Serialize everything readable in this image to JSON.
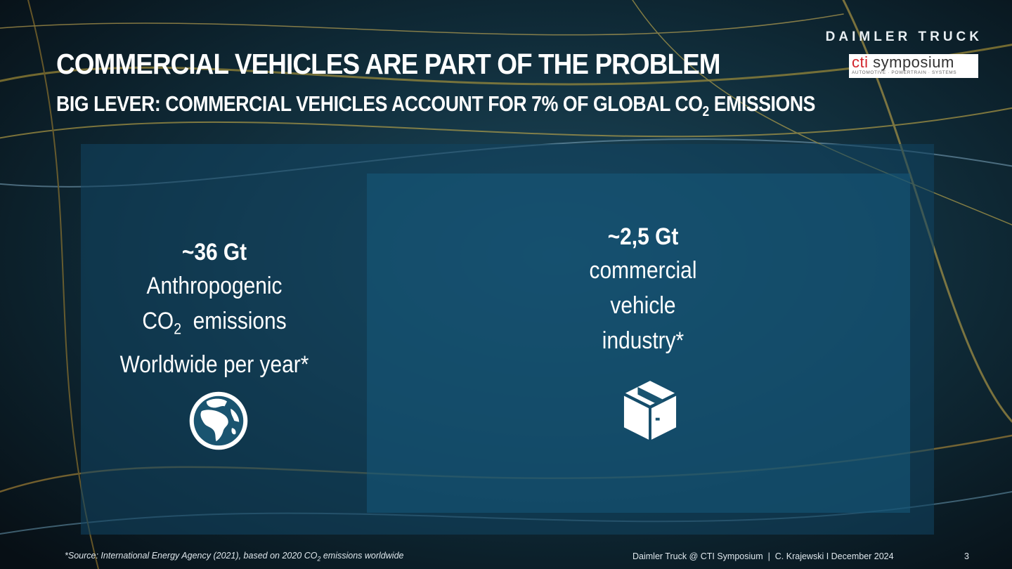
{
  "brand": "DAIMLER TRUCK",
  "partner_logo": {
    "main_accent": "cti",
    "main": "symposium",
    "tagline": "AUTOMOTIVE · POWERTRAIN · SYSTEMS"
  },
  "title": "COMMERCIAL VEHICLES ARE PART OF THE PROBLEM",
  "subtitle": {
    "before": "BIG LEVER: COMMERCIAL VEHICLES ACCOUNT FOR 7% OF GLOBAL CO",
    "sub": "2",
    "after": " EMISSIONS"
  },
  "left_block": {
    "amount": "~36 Gt",
    "line1": "Anthropogenic",
    "line2_before": "CO",
    "line2_sub": "2",
    "line2_after": "  emissions",
    "line3": "Worldwide per year*",
    "icon": "globe-icon"
  },
  "right_block": {
    "amount": "~2,5 Gt",
    "line1": "commercial",
    "line2": "vehicle",
    "line3": "industry*",
    "icon": "package-icon"
  },
  "footnote": {
    "before": "*Source: International Energy Agency (2021), based on 2020 CO",
    "sub": "2",
    "after": " emissions worldwide"
  },
  "footer": "Daimler Truck @ CTI Symposium  |  C. Krajewski I December 2024",
  "page_number": "3",
  "colors": {
    "outer_box": "#124460",
    "inner_box": "#165a7c",
    "background": "#0a1a24"
  }
}
